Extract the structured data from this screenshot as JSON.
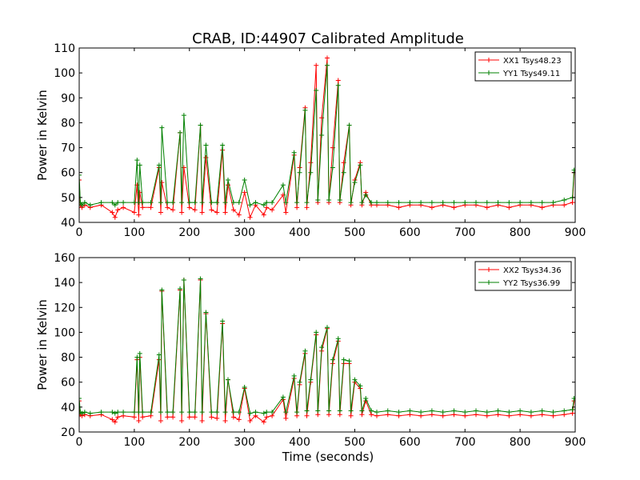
{
  "figure": {
    "title": "CRAB, ID:44907 Calibrated Amplitude",
    "xlabel": "Time (seconds)"
  },
  "chart_data": [
    {
      "type": "line",
      "title": "CRAB, ID:44907 Calibrated Amplitude",
      "xlabel": "",
      "ylabel": "Power in Kelvin",
      "xlim": [
        0,
        900
      ],
      "ylim": [
        40,
        110
      ],
      "xticks": [
        0,
        100,
        200,
        300,
        400,
        500,
        600,
        700,
        800,
        900
      ],
      "yticks": [
        40,
        50,
        60,
        70,
        80,
        90,
        100,
        110
      ],
      "legend_position": "top-right",
      "marker": "+",
      "series": [
        {
          "name": "XX1 Tsys48.23",
          "color": "#ff0000",
          "x": [
            0,
            2,
            5,
            10,
            20,
            40,
            60,
            65,
            70,
            80,
            100,
            105,
            108,
            110,
            115,
            130,
            145,
            148,
            150,
            160,
            170,
            183,
            186,
            190,
            200,
            210,
            220,
            223,
            230,
            240,
            250,
            260,
            265,
            270,
            280,
            290,
            300,
            310,
            320,
            335,
            340,
            350,
            370,
            375,
            390,
            395,
            400,
            410,
            413,
            420,
            430,
            433,
            440,
            450,
            453,
            460,
            470,
            473,
            480,
            490,
            493,
            500,
            510,
            513,
            520,
            530,
            540,
            560,
            580,
            600,
            620,
            640,
            660,
            680,
            700,
            720,
            740,
            760,
            780,
            800,
            820,
            840,
            860,
            880,
            895,
            898
          ],
          "y": [
            57,
            47,
            46,
            47,
            46,
            47,
            44,
            42,
            45,
            46,
            44,
            55,
            43,
            52,
            46,
            46,
            62,
            44,
            56,
            46,
            45,
            76,
            44,
            62,
            46,
            45,
            79,
            44,
            66,
            45,
            44,
            69,
            44,
            55,
            45,
            43,
            52,
            42,
            47,
            43,
            46,
            45,
            51,
            44,
            67,
            46,
            62,
            86,
            46,
            64,
            103,
            48,
            82,
            106,
            48,
            70,
            97,
            48,
            64,
            79,
            47,
            57,
            64,
            47,
            52,
            47,
            47,
            47,
            46,
            47,
            47,
            46,
            47,
            46,
            47,
            47,
            46,
            47,
            46,
            47,
            47,
            46,
            47,
            47,
            48,
            60
          ]
        },
        {
          "name": "YY1 Tsys49.11",
          "color": "#008000",
          "x": [
            0,
            2,
            5,
            10,
            20,
            40,
            60,
            65,
            70,
            80,
            100,
            105,
            108,
            110,
            115,
            130,
            145,
            148,
            150,
            160,
            170,
            183,
            186,
            190,
            200,
            210,
            220,
            223,
            230,
            240,
            250,
            260,
            265,
            270,
            280,
            290,
            300,
            310,
            320,
            335,
            340,
            350,
            370,
            375,
            390,
            395,
            400,
            410,
            413,
            420,
            430,
            433,
            440,
            450,
            453,
            460,
            470,
            473,
            480,
            490,
            493,
            500,
            510,
            513,
            520,
            530,
            540,
            560,
            580,
            600,
            620,
            640,
            660,
            680,
            700,
            720,
            740,
            760,
            780,
            800,
            820,
            840,
            860,
            880,
            895,
            898
          ],
          "y": [
            59,
            48,
            47,
            48,
            47,
            48,
            48,
            47,
            48,
            48,
            48,
            65,
            48,
            63,
            48,
            48,
            63,
            48,
            78,
            48,
            48,
            76,
            48,
            83,
            48,
            48,
            79,
            48,
            71,
            48,
            48,
            71,
            48,
            57,
            48,
            48,
            57,
            47,
            48,
            47,
            48,
            48,
            55,
            48,
            68,
            48,
            60,
            85,
            48,
            60,
            93,
            49,
            75,
            103,
            49,
            62,
            95,
            49,
            60,
            79,
            48,
            56,
            63,
            48,
            51,
            48,
            48,
            48,
            48,
            48,
            48,
            48,
            48,
            48,
            48,
            48,
            48,
            48,
            48,
            48,
            48,
            48,
            48,
            49,
            50,
            61
          ]
        }
      ]
    },
    {
      "type": "line",
      "title": "",
      "xlabel": "Time (seconds)",
      "ylabel": "Power in Kelvin",
      "xlim": [
        0,
        900
      ],
      "ylim": [
        20,
        160
      ],
      "xticks": [
        0,
        100,
        200,
        300,
        400,
        500,
        600,
        700,
        800,
        900
      ],
      "yticks": [
        20,
        40,
        60,
        80,
        100,
        120,
        140,
        160
      ],
      "legend_position": "top-right",
      "marker": "+",
      "series": [
        {
          "name": "XX2 Tsys34.36",
          "color": "#ff0000",
          "x": [
            0,
            2,
            5,
            10,
            20,
            40,
            60,
            65,
            70,
            80,
            100,
            105,
            108,
            110,
            115,
            130,
            145,
            148,
            150,
            160,
            170,
            183,
            186,
            190,
            200,
            210,
            220,
            223,
            230,
            240,
            250,
            260,
            265,
            270,
            280,
            290,
            300,
            310,
            320,
            335,
            340,
            350,
            370,
            375,
            390,
            395,
            400,
            410,
            413,
            420,
            430,
            433,
            440,
            450,
            453,
            460,
            470,
            473,
            480,
            490,
            493,
            500,
            510,
            513,
            520,
            530,
            540,
            560,
            580,
            600,
            620,
            640,
            660,
            680,
            700,
            720,
            740,
            760,
            780,
            800,
            820,
            840,
            860,
            880,
            895,
            898
          ],
          "y": [
            45,
            34,
            33,
            34,
            33,
            34,
            30,
            28,
            32,
            33,
            32,
            78,
            29,
            80,
            32,
            33,
            78,
            29,
            133,
            32,
            32,
            134,
            29,
            142,
            32,
            32,
            142,
            29,
            115,
            32,
            31,
            107,
            29,
            62,
            32,
            30,
            55,
            29,
            33,
            28,
            32,
            33,
            46,
            31,
            63,
            33,
            58,
            83,
            33,
            60,
            98,
            34,
            85,
            103,
            34,
            75,
            93,
            34,
            75,
            75,
            33,
            60,
            55,
            34,
            45,
            34,
            33,
            34,
            33,
            34,
            33,
            34,
            33,
            34,
            33,
            34,
            33,
            34,
            33,
            34,
            33,
            34,
            33,
            34,
            35,
            45
          ]
        },
        {
          "name": "YY2 Tsys36.99",
          "color": "#008000",
          "x": [
            0,
            2,
            5,
            10,
            20,
            40,
            60,
            65,
            70,
            80,
            100,
            105,
            108,
            110,
            115,
            130,
            145,
            148,
            150,
            160,
            170,
            183,
            186,
            190,
            200,
            210,
            220,
            223,
            230,
            240,
            250,
            260,
            265,
            270,
            280,
            290,
            300,
            310,
            320,
            335,
            340,
            350,
            370,
            375,
            390,
            395,
            400,
            410,
            413,
            420,
            430,
            433,
            440,
            450,
            453,
            460,
            470,
            473,
            480,
            490,
            493,
            500,
            510,
            513,
            520,
            530,
            540,
            560,
            580,
            600,
            620,
            640,
            660,
            680,
            700,
            720,
            740,
            760,
            780,
            800,
            820,
            840,
            860,
            880,
            895,
            898
          ],
          "y": [
            47,
            36,
            35,
            36,
            35,
            36,
            36,
            35,
            36,
            36,
            36,
            80,
            36,
            83,
            36,
            36,
            82,
            36,
            134,
            36,
            36,
            135,
            36,
            142,
            36,
            36,
            143,
            36,
            116,
            36,
            36,
            109,
            36,
            62,
            36,
            36,
            56,
            35,
            36,
            35,
            36,
            36,
            48,
            36,
            65,
            36,
            60,
            85,
            37,
            62,
            100,
            37,
            88,
            104,
            37,
            78,
            95,
            37,
            78,
            77,
            37,
            62,
            57,
            37,
            47,
            37,
            36,
            37,
            36,
            37,
            36,
            37,
            36,
            37,
            36,
            37,
            36,
            37,
            36,
            37,
            36,
            37,
            36,
            37,
            38,
            47
          ]
        }
      ]
    }
  ]
}
